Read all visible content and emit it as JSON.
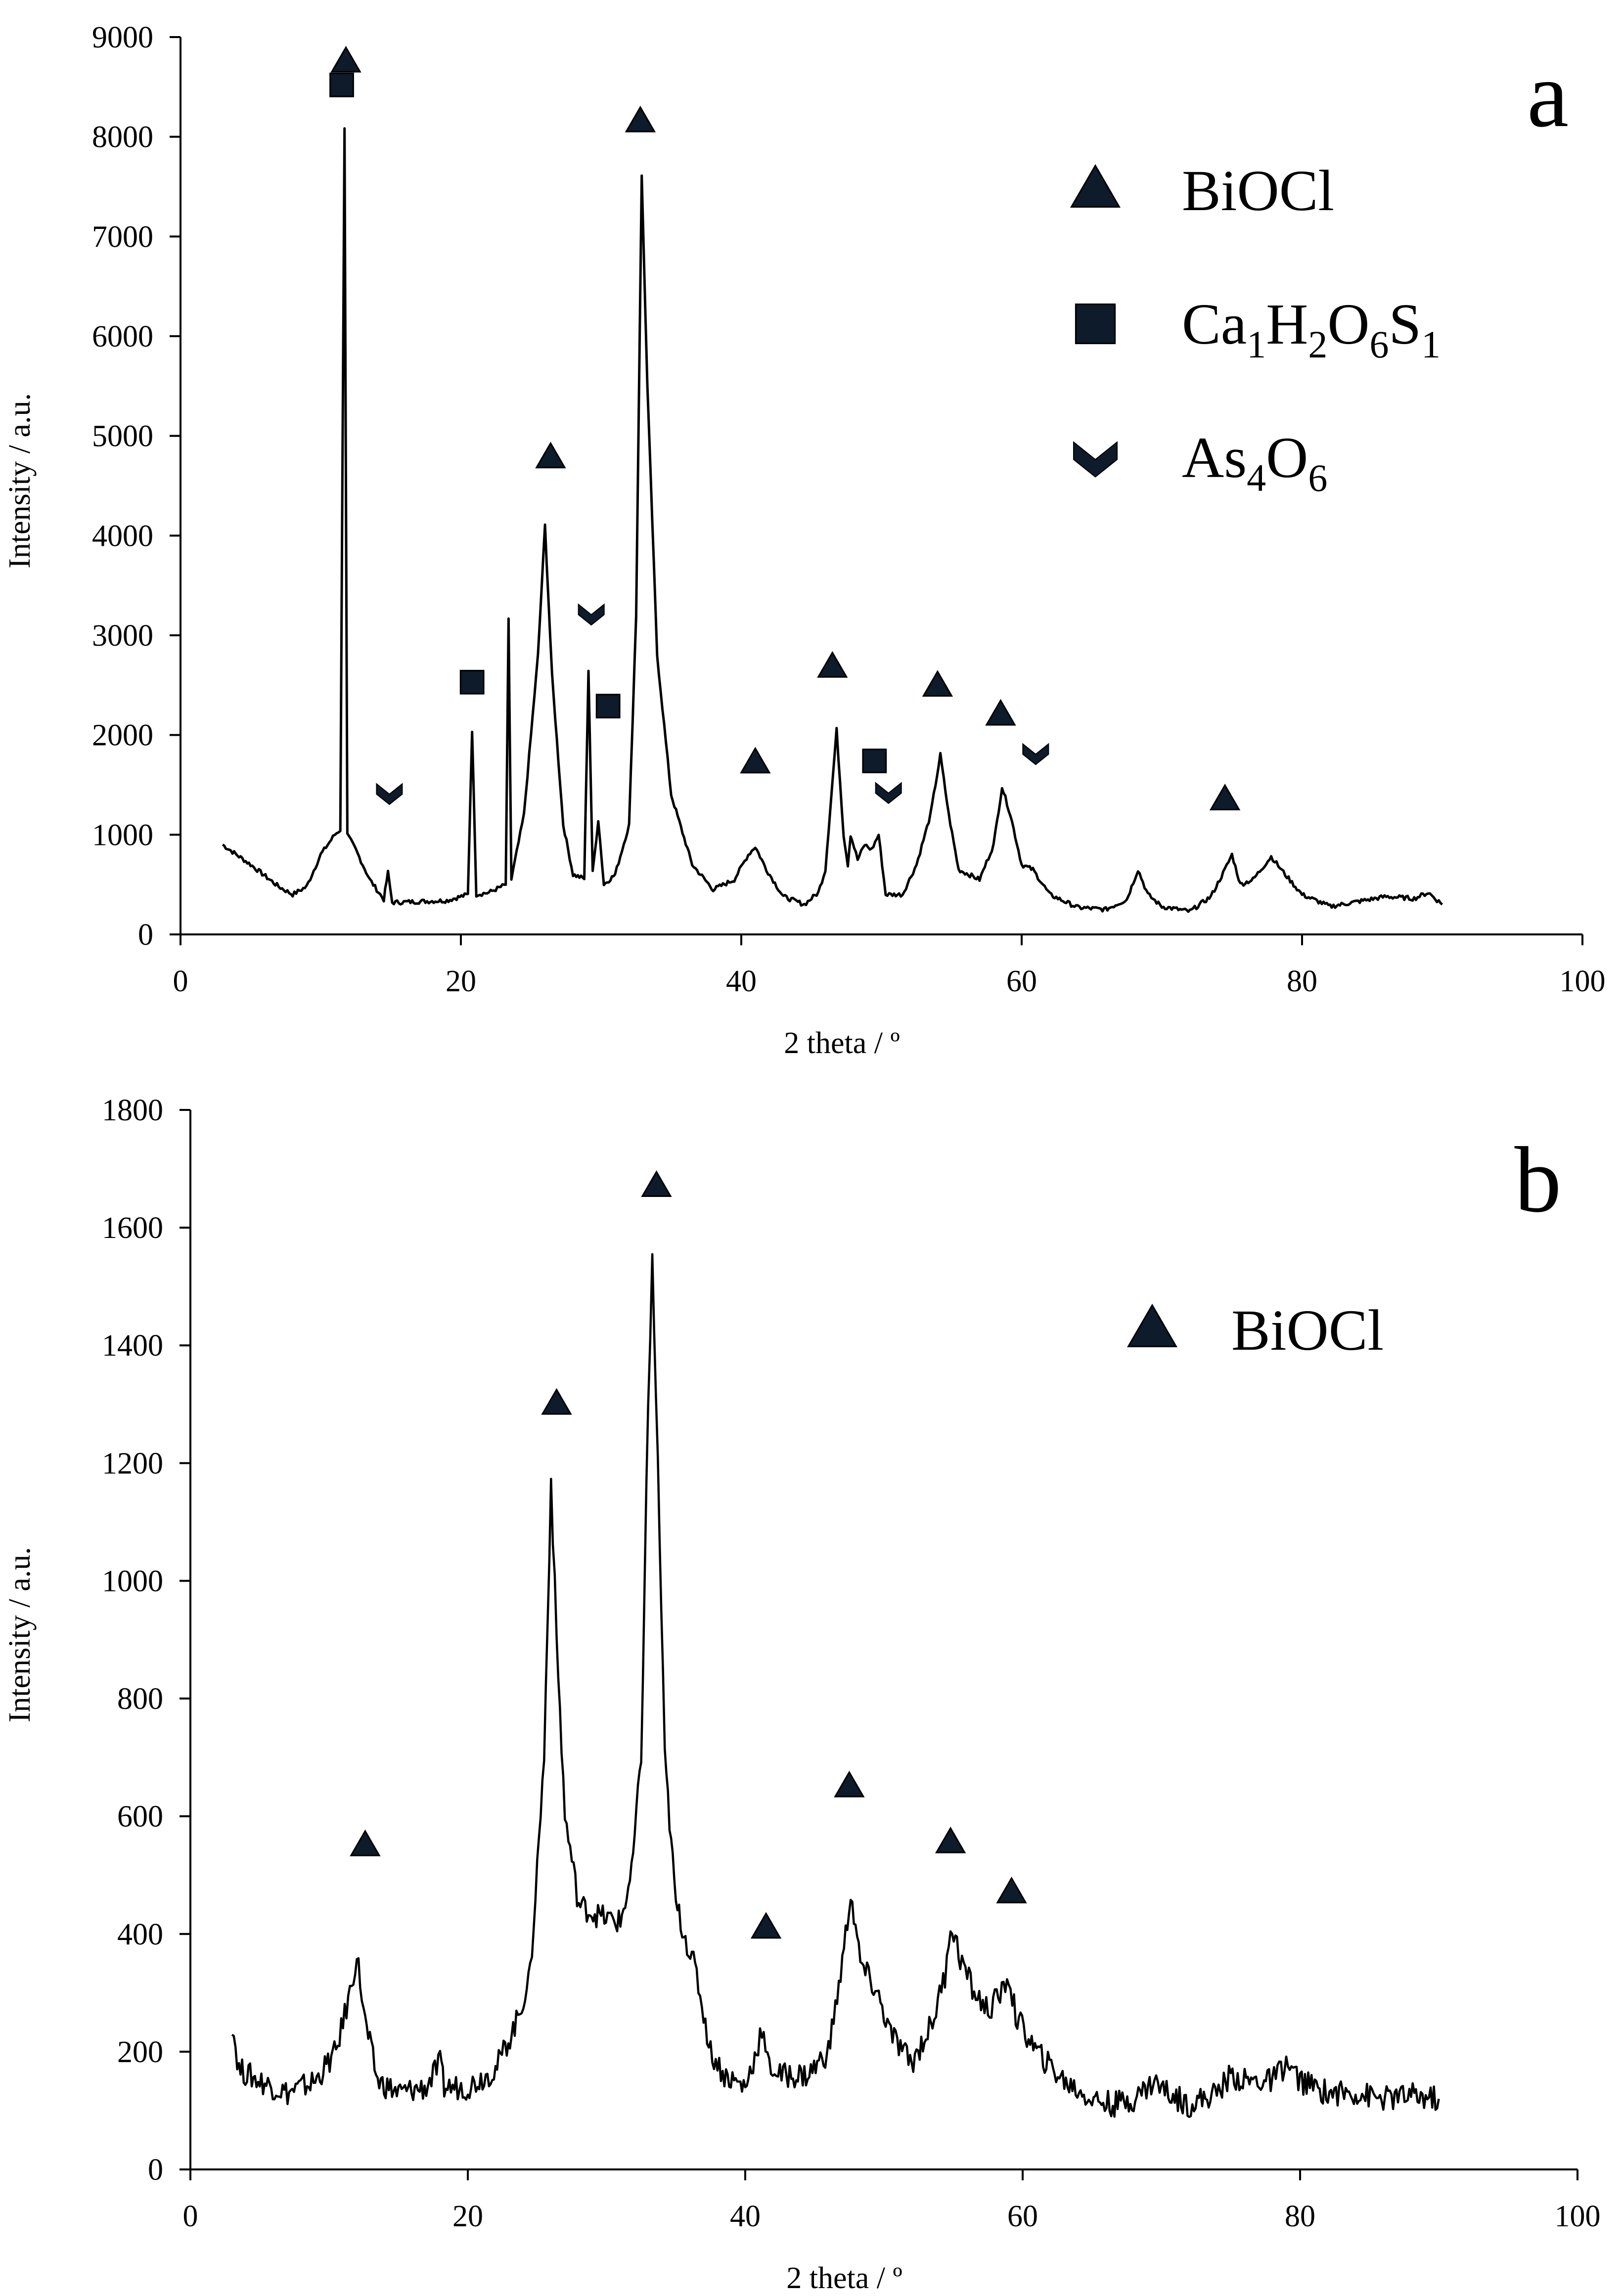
{
  "marker_colors": {
    "fill": "#0d1b2a",
    "stroke": "#000000",
    "trace": "#000000"
  },
  "chart_data": [
    {
      "type": "line",
      "panel_label": "a",
      "xlabel": "2 theta / º",
      "ylabel": "Intensity / a.u.",
      "xlim": [
        0,
        100
      ],
      "ylim": [
        0,
        9000
      ],
      "xticks": [
        "0",
        "20",
        "40",
        "60",
        "80",
        "100"
      ],
      "yticks": [
        "0",
        "1000",
        "2000",
        "3000",
        "4000",
        "5000",
        "6000",
        "7000",
        "8000",
        "9000"
      ],
      "grid": false,
      "legend_position": "top-right",
      "series": [
        {
          "points": [
            [
              3,
              900
            ],
            [
              5,
              700
            ],
            [
              7,
              480
            ],
            [
              8,
              400
            ],
            [
              9,
              480
            ],
            [
              10,
              800
            ],
            [
              11,
              1000
            ],
            [
              11.4,
              1050
            ],
            [
              11.7,
              8100
            ],
            [
              11.9,
              1000
            ],
            [
              12.5,
              850
            ],
            [
              13.5,
              550
            ],
            [
              14.5,
              350
            ],
            [
              14.8,
              620
            ],
            [
              15.1,
              320
            ],
            [
              17,
              330
            ],
            [
              19,
              340
            ],
            [
              20.5,
              400
            ],
            [
              20.8,
              2050
            ],
            [
              21.1,
              400
            ],
            [
              22,
              420
            ],
            [
              23.2,
              500
            ],
            [
              23.4,
              3150
            ],
            [
              23.6,
              550
            ],
            [
              24.5,
              1200
            ],
            [
              25.5,
              2800
            ],
            [
              26,
              4100
            ],
            [
              26.5,
              2600
            ],
            [
              27.3,
              1100
            ],
            [
              28,
              600
            ],
            [
              28.8,
              560
            ],
            [
              29.1,
              2650
            ],
            [
              29.4,
              620
            ],
            [
              29.8,
              1150
            ],
            [
              30.2,
              500
            ],
            [
              31,
              600
            ],
            [
              32,
              1100
            ],
            [
              32.5,
              3200
            ],
            [
              32.9,
              7600
            ],
            [
              33.3,
              5500
            ],
            [
              34,
              2800
            ],
            [
              35,
              1400
            ],
            [
              36.5,
              700
            ],
            [
              38,
              450
            ],
            [
              39.5,
              550
            ],
            [
              40.5,
              800
            ],
            [
              41,
              880
            ],
            [
              41.8,
              650
            ],
            [
              43,
              380
            ],
            [
              44.5,
              300
            ],
            [
              45.5,
              420
            ],
            [
              46,
              650
            ],
            [
              46.8,
              2050
            ],
            [
              47.3,
              1000
            ],
            [
              47.6,
              700
            ],
            [
              47.8,
              1000
            ],
            [
              48.3,
              750
            ],
            [
              48.8,
              900
            ],
            [
              49.3,
              850
            ],
            [
              49.8,
              1000
            ],
            [
              50.3,
              400
            ],
            [
              51.5,
              400
            ],
            [
              52.5,
              700
            ],
            [
              53.5,
              1200
            ],
            [
              54.2,
              1800
            ],
            [
              54.8,
              1200
            ],
            [
              55.5,
              650
            ],
            [
              57,
              550
            ],
            [
              58,
              900
            ],
            [
              58.6,
              1480
            ],
            [
              59.2,
              1200
            ],
            [
              60,
              700
            ],
            [
              60.8,
              650
            ],
            [
              62,
              400
            ],
            [
              64,
              270
            ],
            [
              66,
              250
            ],
            [
              67.5,
              350
            ],
            [
              68.3,
              650
            ],
            [
              69,
              400
            ],
            [
              70,
              280
            ],
            [
              72,
              230
            ],
            [
              73.5,
              380
            ],
            [
              74.5,
              650
            ],
            [
              75,
              800
            ],
            [
              75.6,
              500
            ],
            [
              76.5,
              550
            ],
            [
              77.8,
              780
            ],
            [
              78.8,
              600
            ],
            [
              80,
              400
            ],
            [
              82,
              280
            ],
            [
              84,
              330
            ],
            [
              86,
              380
            ],
            [
              88,
              360
            ],
            [
              89,
              420
            ],
            [
              90,
              300
            ]
          ]
        }
      ],
      "markers": [
        {
          "type": "triangle",
          "x": 11.8,
          "y": 8750
        },
        {
          "type": "square",
          "x": 11.5,
          "y": 8520
        },
        {
          "type": "square",
          "x": 20.8,
          "y": 2530
        },
        {
          "type": "triangle",
          "x": 26.4,
          "y": 4780
        },
        {
          "type": "triangle",
          "x": 32.8,
          "y": 8150
        },
        {
          "type": "chevron",
          "x": 14.9,
          "y": 1420
        },
        {
          "type": "chevron",
          "x": 29.3,
          "y": 3220
        },
        {
          "type": "square",
          "x": 30.5,
          "y": 2290
        },
        {
          "type": "triangle",
          "x": 41.0,
          "y": 1720
        },
        {
          "type": "triangle",
          "x": 46.5,
          "y": 2680
        },
        {
          "type": "square",
          "x": 49.5,
          "y": 1740
        },
        {
          "type": "chevron",
          "x": 50.5,
          "y": 1430
        },
        {
          "type": "triangle",
          "x": 54.0,
          "y": 2490
        },
        {
          "type": "triangle",
          "x": 58.5,
          "y": 2200
        },
        {
          "type": "chevron",
          "x": 61.0,
          "y": 1820
        },
        {
          "type": "triangle",
          "x": 74.5,
          "y": 1350
        }
      ],
      "legend": [
        {
          "marker": "triangle",
          "label": "BiOCl"
        },
        {
          "marker": "square",
          "label_parts": [
            {
              "t": "Ca"
            },
            {
              "t": "1",
              "sub": true
            },
            {
              "t": "H"
            },
            {
              "t": "2",
              "sub": true
            },
            {
              "t": "O"
            },
            {
              "t": "6",
              "sub": true
            },
            {
              "t": "S"
            },
            {
              "t": "1",
              "sub": true
            }
          ]
        },
        {
          "marker": "chevron",
          "label_parts": [
            {
              "t": "As"
            },
            {
              "t": "4",
              "sub": true
            },
            {
              "t": "O"
            },
            {
              "t": "6",
              "sub": true
            }
          ]
        }
      ]
    },
    {
      "type": "line",
      "panel_label": "b",
      "xlabel": "2 theta / º",
      "ylabel": "Intensity / a.u.",
      "xlim": [
        0,
        100
      ],
      "ylim": [
        0,
        1800
      ],
      "xticks": [
        "0",
        "20",
        "40",
        "60",
        "80",
        "100"
      ],
      "yticks": [
        "0",
        "200",
        "400",
        "600",
        "800",
        "1000",
        "1200",
        "1400",
        "1600",
        "1800"
      ],
      "grid": false,
      "legend_position": "top-right",
      "series": [
        {
          "points": [
            [
              3,
              250
            ],
            [
              3.5,
              170
            ],
            [
              5,
              150
            ],
            [
              7,
              130
            ],
            [
              9,
              150
            ],
            [
              10.5,
              200
            ],
            [
              11.5,
              300
            ],
            [
              12,
              365
            ],
            [
              12.6,
              250
            ],
            [
              13.5,
              150
            ],
            [
              15,
              130
            ],
            [
              17,
              140
            ],
            [
              18,
              180
            ],
            [
              18.3,
              140
            ],
            [
              20,
              140
            ],
            [
              22,
              170
            ],
            [
              23.5,
              250
            ],
            [
              24.5,
              330
            ],
            [
              25.5,
              700
            ],
            [
              26,
              1170
            ],
            [
              26.4,
              900
            ],
            [
              27,
              600
            ],
            [
              28,
              450
            ],
            [
              29.5,
              430
            ],
            [
              31,
              420
            ],
            [
              31.8,
              500
            ],
            [
              32.5,
              700
            ],
            [
              33,
              1300
            ],
            [
              33.3,
              1540
            ],
            [
              33.7,
              1200
            ],
            [
              34.2,
              700
            ],
            [
              35,
              450
            ],
            [
              36.5,
              330
            ],
            [
              37.5,
              200
            ],
            [
              38.5,
              160
            ],
            [
              40,
              140
            ],
            [
              40.8,
              200
            ],
            [
              41.2,
              240
            ],
            [
              41.6,
              180
            ],
            [
              42.5,
              160
            ],
            [
              44.5,
              160
            ],
            [
              46,
              200
            ],
            [
              47,
              350
            ],
            [
              47.6,
              470
            ],
            [
              48.3,
              350
            ],
            [
              49.5,
              300
            ],
            [
              50.5,
              230
            ],
            [
              52,
              180
            ],
            [
              53.5,
              250
            ],
            [
              54.4,
              330
            ],
            [
              54.8,
              420
            ],
            [
              55.5,
              360
            ],
            [
              56.5,
              300
            ],
            [
              57.5,
              270
            ],
            [
              58.5,
              300
            ],
            [
              59,
              330
            ],
            [
              59.5,
              260
            ],
            [
              61,
              200
            ],
            [
              63,
              150
            ],
            [
              65,
              120
            ],
            [
              66.5,
              110
            ],
            [
              68,
              120
            ],
            [
              69.5,
              150
            ],
            [
              70.5,
              130
            ],
            [
              72,
              110
            ],
            [
              74,
              130
            ],
            [
              75,
              160
            ],
            [
              76,
              150
            ],
            [
              78,
              150
            ],
            [
              79,
              180
            ],
            [
              80,
              150
            ],
            [
              82,
              130
            ],
            [
              84,
              130
            ],
            [
              86,
              120
            ],
            [
              88,
              125
            ],
            [
              90,
              120
            ]
          ]
        }
      ],
      "markers": [
        {
          "type": "triangle",
          "x": 12.6,
          "y": 550
        },
        {
          "type": "triangle",
          "x": 26.4,
          "y": 1300
        },
        {
          "type": "triangle",
          "x": 33.6,
          "y": 1670
        },
        {
          "type": "triangle",
          "x": 41.5,
          "y": 410
        },
        {
          "type": "triangle",
          "x": 47.5,
          "y": 650
        },
        {
          "type": "triangle",
          "x": 54.8,
          "y": 555
        },
        {
          "type": "triangle",
          "x": 59.2,
          "y": 470
        }
      ],
      "legend": [
        {
          "marker": "triangle",
          "label": "BiOCl"
        }
      ]
    }
  ]
}
